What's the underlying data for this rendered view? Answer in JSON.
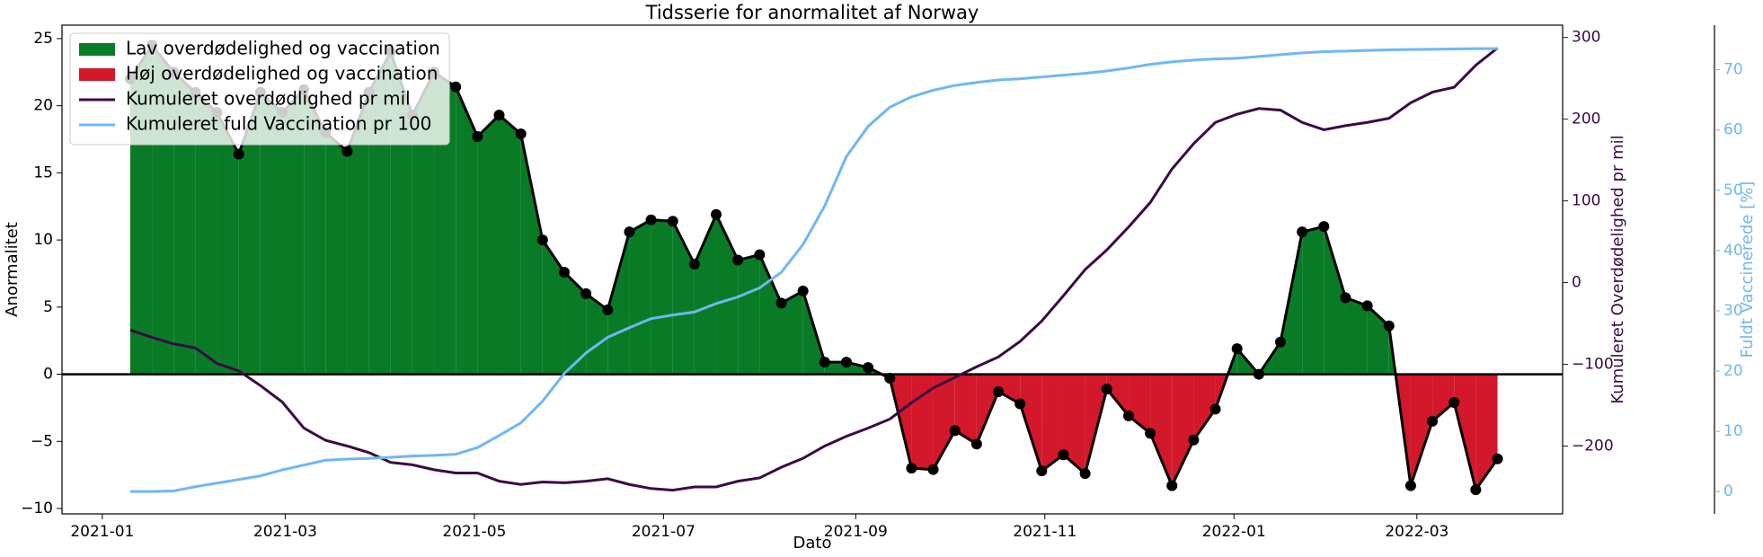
{
  "chart_data": {
    "type": "line",
    "title": "Tidsserie for anormalitet af Norway",
    "xlabel": "Dato",
    "ylabel": "Anormalitet",
    "y2label": "Kumuleret Overdødelighed pr mil",
    "y3label": "Fuldt Vaccinerede [%]",
    "x": [
      9,
      16,
      23,
      30,
      37,
      44,
      51,
      58,
      65,
      72,
      79,
      86,
      93,
      100,
      107,
      114,
      121,
      128,
      135,
      142,
      149,
      156,
      163,
      170,
      177,
      184,
      191,
      198,
      205,
      212,
      219,
      226,
      233,
      240,
      247,
      254,
      261,
      268,
      275,
      282,
      289,
      296,
      303,
      310,
      317,
      324,
      331,
      338,
      345,
      352,
      359,
      366,
      373,
      380,
      387,
      394,
      401,
      408,
      415,
      422,
      429,
      436,
      443,
      450
    ],
    "xlim": [
      -13,
      471
    ],
    "xticks": [
      {
        "value": 0,
        "label": "2021-01"
      },
      {
        "value": 59,
        "label": "2021-03"
      },
      {
        "value": 120,
        "label": "2021-05"
      },
      {
        "value": 181,
        "label": "2021-07"
      },
      {
        "value": 243,
        "label": "2021-09"
      },
      {
        "value": 304,
        "label": "2021-11"
      },
      {
        "value": 365,
        "label": "2022-01"
      },
      {
        "value": 424,
        "label": "2022-03"
      }
    ],
    "ylim": [
      -10.4,
      26
    ],
    "yticks": [
      {
        "value": -10,
        "label": "−10"
      },
      {
        "value": -5,
        "label": "−5"
      },
      0,
      5,
      10,
      15,
      20,
      25
    ],
    "y2lim": [
      -283,
      315
    ],
    "y2ticks": [
      {
        "value": -200,
        "label": "−200"
      },
      {
        "value": -100,
        "label": "−100"
      },
      0,
      100,
      200,
      300
    ],
    "y2color": "#3a0a45",
    "y3lim": [
      -3.7,
      77.4
    ],
    "y3ticks": [
      0,
      10,
      20,
      30,
      40,
      50,
      60,
      70
    ],
    "y3color": "#6fb7f3",
    "legend": "upper left",
    "fill_above": {
      "name": "Lav overdødelighed og vaccination",
      "color": "#097b26"
    },
    "fill_below": {
      "name": "Høj overdødelighed og vaccination",
      "color": "#d2182a"
    },
    "series": [
      {
        "color": "#000000",
        "markers": true,
        "values": [
          22,
          24.5,
          22.5,
          21,
          19.5,
          16.4,
          21,
          19.5,
          21.2,
          18,
          16.6,
          21,
          24,
          19.3,
          22.5,
          21.4,
          17.7,
          19.3,
          17.9,
          10,
          7.6,
          6,
          4.8,
          10.6,
          11.5,
          11.4,
          8.2,
          11.9,
          8.5,
          8.9,
          5.3,
          6.2,
          0.9,
          0.9,
          0.5,
          -0.3,
          -7,
          -7.1,
          -4.2,
          -5.2,
          -1.3,
          -2.2,
          -7.2,
          -6,
          -7.4,
          -1.1,
          -3.1,
          -4.4,
          -8.3,
          -4.9,
          -2.6,
          1.9,
          0,
          2.4,
          10.6,
          11,
          5.7,
          5.1,
          3.6,
          -8.3,
          -3.5,
          -2.1,
          -8.6,
          -6.3
        ]
      },
      {
        "name": "Kumuleret overdødlighed pr mil",
        "color": "#3a0a45",
        "axis": "y2",
        "values": [
          -58,
          -67,
          -75,
          -80,
          -99,
          -108,
          -126,
          -146,
          -178,
          -193,
          -200,
          -208,
          -220,
          -223,
          -229,
          -233,
          -233,
          -243,
          -247,
          -244,
          -245,
          -243,
          -240,
          -247,
          -252,
          -254,
          -250,
          -250,
          -243,
          -239,
          -226,
          -215,
          -200,
          -188,
          -178,
          -167,
          -147,
          -129,
          -116,
          -103,
          -91,
          -72,
          -47,
          -16,
          16,
          40,
          68,
          98,
          139,
          170,
          196,
          206,
          213,
          211,
          196,
          187,
          192,
          196,
          201,
          220,
          233,
          239,
          266,
          287
        ]
      },
      {
        "name": "Kumuleret fuld Vaccination pr 100",
        "color": "#6fb7f3",
        "axis": "y3",
        "values": [
          0,
          0,
          0.1,
          0.8,
          1.4,
          2.0,
          2.6,
          3.6,
          4.4,
          5.2,
          5.4,
          5.5,
          5.7,
          5.9,
          6.0,
          6.2,
          7.3,
          9.3,
          11.4,
          15,
          19.6,
          23,
          25.6,
          27.2,
          28.7,
          29.3,
          29.8,
          31.2,
          32.3,
          33.8,
          36.4,
          41,
          47.4,
          55.6,
          60.6,
          63.8,
          65.5,
          66.6,
          67.4,
          67.9,
          68.3,
          68.5,
          68.8,
          69.1,
          69.4,
          69.8,
          70.3,
          70.9,
          71.3,
          71.6,
          71.8,
          71.9,
          72.2,
          72.5,
          72.8,
          73.0,
          73.1,
          73.2,
          73.3,
          73.35,
          73.4,
          73.45,
          73.5,
          73.5
        ]
      }
    ]
  }
}
